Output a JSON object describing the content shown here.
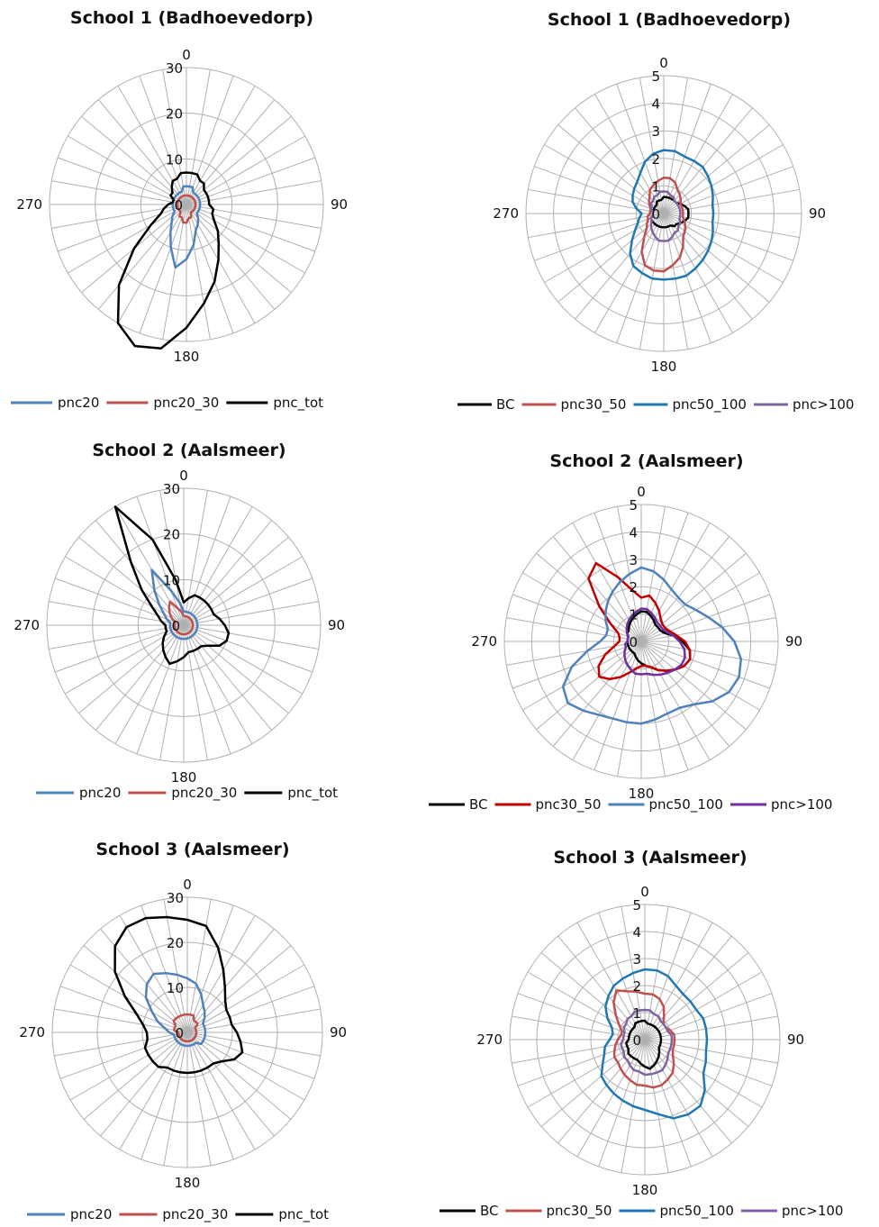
{
  "chart_data": [
    {
      "type": "radar",
      "title": "School 1 (Badhoevedorp)",
      "axis_labels": [
        "0",
        "90",
        "180",
        "270"
      ],
      "rlim": [
        0,
        30
      ],
      "rticks": [
        "0",
        "10",
        "20",
        "30"
      ],
      "spokes": 36,
      "grid": true,
      "legend_position": "bottom",
      "series": [
        {
          "name": "pnc20",
          "color": "#4f81bd",
          "values": [
            4,
            4,
            4,
            3,
            3,
            3,
            3,
            3,
            3,
            3,
            3,
            3,
            3,
            3,
            4,
            5,
            6,
            9,
            12,
            14,
            10,
            7,
            5,
            4,
            3,
            3,
            3,
            3,
            3,
            3,
            3,
            3,
            3,
            3,
            3,
            4
          ]
        },
        {
          "name": "pnc20_30",
          "color": "#c0504d",
          "values": [
            2,
            2,
            2,
            2,
            2,
            2,
            2,
            2,
            2,
            2,
            2,
            2,
            2,
            2,
            2,
            2,
            3,
            3,
            4,
            4,
            3,
            3,
            2,
            2,
            2,
            2,
            2,
            2,
            2,
            2,
            2,
            2,
            2,
            2,
            2,
            2
          ]
        },
        {
          "name": "pnc_tot",
          "color": "#000000",
          "values": [
            7,
            7,
            7,
            6,
            6,
            5,
            5,
            5,
            5,
            5,
            6,
            6,
            7,
            9,
            11,
            14,
            18,
            22,
            27,
            32,
            33,
            30,
            23,
            15,
            9,
            6,
            5,
            4,
            3,
            3,
            4,
            4,
            5,
            6,
            6,
            7
          ]
        }
      ]
    },
    {
      "type": "radar",
      "title": "School 1 (Badhoevedorp)",
      "axis_labels": [
        "0",
        "90",
        "180",
        "270"
      ],
      "rlim": [
        0,
        5
      ],
      "rticks": [
        "0",
        "1",
        "2",
        "3",
        "4",
        "5"
      ],
      "spokes": 36,
      "grid": true,
      "legend_position": "bottom",
      "series": [
        {
          "name": "BC",
          "color": "#000000",
          "values": [
            0.6,
            0.6,
            0.6,
            0.6,
            0.6,
            0.6,
            0.7,
            0.8,
            0.9,
            0.9,
            0.9,
            0.8,
            0.7,
            0.6,
            0.6,
            0.5,
            0.5,
            0.5,
            0.5,
            0.5,
            0.5,
            0.5,
            0.5,
            0.5,
            0.5,
            0.5,
            0.4,
            0.4,
            0.4,
            0.4,
            0.4,
            0.4,
            0.4,
            0.5,
            0.5,
            0.5
          ]
        },
        {
          "name": "pnc30_50",
          "color": "#c0504d",
          "values": [
            1.3,
            1.3,
            1.2,
            1.0,
            0.9,
            0.8,
            0.7,
            0.7,
            0.7,
            0.7,
            0.7,
            0.8,
            0.9,
            1.0,
            1.1,
            1.4,
            1.7,
            1.9,
            2.1,
            2.1,
            2.0,
            1.6,
            1.1,
            0.8,
            0.7,
            0.6,
            0.6,
            0.5,
            0.5,
            0.5,
            0.6,
            0.7,
            0.8,
            1.0,
            1.1,
            1.2
          ]
        },
        {
          "name": "pnc50_100",
          "color": "#1f78b4",
          "values": [
            2.3,
            2.3,
            2.2,
            2.2,
            2.2,
            2.1,
            2.0,
            1.9,
            1.8,
            1.8,
            1.8,
            1.9,
            2.0,
            2.1,
            2.2,
            2.3,
            2.4,
            2.4,
            2.4,
            2.4,
            2.3,
            2.2,
            1.9,
            1.5,
            1.2,
            1.0,
            0.9,
            0.8,
            1.0,
            1.2,
            1.3,
            1.4,
            1.5,
            1.7,
            2.0,
            2.2
          ]
        },
        {
          "name": "pnc>100",
          "color": "#8064a2",
          "values": [
            0.8,
            0.8,
            0.7,
            0.7,
            0.6,
            0.6,
            0.6,
            0.6,
            0.6,
            0.6,
            0.6,
            0.6,
            0.7,
            0.7,
            0.8,
            0.8,
            0.9,
            1.0,
            1.0,
            1.0,
            0.9,
            0.8,
            0.7,
            0.6,
            0.5,
            0.5,
            0.4,
            0.4,
            0.4,
            0.5,
            0.5,
            0.6,
            0.6,
            0.7,
            0.7,
            0.8
          ]
        }
      ]
    },
    {
      "type": "radar",
      "title": "School 2 (Aalsmeer)",
      "axis_labels": [
        "0",
        "90",
        "180",
        "270"
      ],
      "rlim": [
        0,
        30
      ],
      "rticks": [
        "0",
        "10",
        "20",
        "30"
      ],
      "spokes": 36,
      "grid": true,
      "legend_position": "bottom",
      "series": [
        {
          "name": "pnc20",
          "color": "#4f81bd",
          "values": [
            3,
            3,
            3,
            3,
            3,
            3,
            3,
            3,
            3,
            3,
            3,
            3,
            3,
            3,
            3,
            3,
            3,
            3,
            3,
            3,
            3,
            3,
            3,
            3,
            3,
            3,
            3,
            3,
            3,
            4,
            5,
            7,
            10,
            14,
            8,
            5
          ]
        },
        {
          "name": "pnc20_30",
          "color": "#c0504d",
          "values": [
            2,
            2,
            2,
            2,
            2,
            2,
            2,
            2,
            2,
            2,
            2,
            2,
            2,
            2,
            2,
            2,
            2,
            2,
            2,
            2,
            2,
            2,
            2,
            2,
            2,
            2,
            2,
            2,
            2,
            2,
            3,
            4,
            5,
            6,
            4,
            3
          ]
        },
        {
          "name": "pnc_tot",
          "color": "#000000",
          "values": [
            5,
            6,
            7,
            7,
            7,
            7,
            7,
            7,
            8,
            9,
            10,
            10,
            9,
            7,
            6,
            6,
            6,
            6,
            7,
            8,
            9,
            8,
            7,
            6,
            5,
            4,
            4,
            4,
            5,
            6,
            8,
            12,
            18,
            30,
            20,
            10
          ]
        }
      ]
    },
    {
      "type": "radar",
      "title": "School 2 (Aalsmeer)",
      "axis_labels": [
        "0",
        "90",
        "180",
        "270"
      ],
      "rlim": [
        0,
        5
      ],
      "rticks": [
        "0",
        "1",
        "2",
        "3",
        "4",
        "5"
      ],
      "spokes": 36,
      "grid": true,
      "legend_position": "bottom",
      "series": [
        {
          "name": "BC",
          "color": "#000000",
          "values": [
            1.1,
            1.1,
            1.0,
            0.9,
            0.8,
            0.8,
            0.8,
            0.9,
            1.2,
            1.5,
            1.8,
            1.9,
            1.8,
            1.6,
            1.4,
            1.2,
            1.0,
            0.9,
            0.8,
            0.7,
            0.6,
            0.5,
            0.5,
            0.5,
            0.5,
            0.5,
            0.5,
            0.5,
            0.5,
            0.5,
            0.6,
            0.6,
            0.7,
            0.8,
            0.9,
            1.0
          ]
        },
        {
          "name": "pnc30_50",
          "color": "#c00000",
          "values": [
            1.6,
            1.7,
            1.5,
            1.3,
            1.1,
            1.0,
            1.0,
            1.1,
            1.3,
            1.6,
            1.8,
            1.9,
            1.8,
            1.6,
            1.4,
            1.2,
            1.0,
            0.9,
            0.9,
            1.0,
            1.2,
            1.5,
            1.8,
            2.0,
            1.8,
            1.4,
            1.0,
            0.8,
            0.8,
            0.9,
            1.3,
            2.0,
            3.0,
            3.3,
            2.5,
            1.9
          ]
        },
        {
          "name": "pnc50_100",
          "color": "#4f81bd",
          "values": [
            2.7,
            2.6,
            2.4,
            2.2,
            2.1,
            2.1,
            2.3,
            2.6,
            3.0,
            3.4,
            3.7,
            3.8,
            3.7,
            3.4,
            3.0,
            2.8,
            2.8,
            2.9,
            3.0,
            3.0,
            3.0,
            3.1,
            3.3,
            3.5,
            3.3,
            2.7,
            2.0,
            1.5,
            1.3,
            1.3,
            1.5,
            1.7,
            1.9,
            2.1,
            2.3,
            2.5
          ]
        },
        {
          "name": "pnc>100",
          "color": "#7030a0",
          "values": [
            1.2,
            1.2,
            1.1,
            1.0,
            0.9,
            0.9,
            0.9,
            1.0,
            1.2,
            1.4,
            1.6,
            1.7,
            1.7,
            1.6,
            1.5,
            1.4,
            1.3,
            1.2,
            1.2,
            1.2,
            1.1,
            1.0,
            0.9,
            0.8,
            0.7,
            0.6,
            0.6,
            0.5,
            0.5,
            0.5,
            0.6,
            0.7,
            0.8,
            0.9,
            1.0,
            1.1
          ]
        }
      ]
    },
    {
      "type": "radar",
      "title": "School 3 (Aalsmeer)",
      "axis_labels": [
        "0",
        "90",
        "180",
        "270"
      ],
      "rlim": [
        0,
        30
      ],
      "rticks": [
        "0",
        "10",
        "20",
        "30"
      ],
      "spokes": 36,
      "grid": true,
      "legend_position": "bottom",
      "series": [
        {
          "name": "pnc20",
          "color": "#4f81bd",
          "values": [
            12,
            11,
            9,
            7,
            6,
            5,
            4,
            4,
            4,
            4,
            4,
            4,
            4,
            4,
            3,
            3,
            3,
            3,
            3,
            3,
            3,
            3,
            3,
            3,
            3,
            3,
            3,
            4,
            5,
            7,
            9,
            12,
            14,
            15,
            14,
            13
          ]
        },
        {
          "name": "pnc20_30",
          "color": "#c0504d",
          "values": [
            4,
            4,
            4,
            3,
            3,
            3,
            2,
            2,
            2,
            2,
            2,
            2,
            2,
            2,
            2,
            2,
            2,
            2,
            2,
            2,
            2,
            2,
            2,
            2,
            2,
            2,
            2,
            2,
            3,
            3,
            3,
            4,
            4,
            4,
            4,
            4
          ]
        },
        {
          "name": "pnc_tot",
          "color": "#000000",
          "values": [
            25,
            24,
            20,
            16,
            13,
            11,
            10,
            10,
            10,
            11,
            12,
            13,
            12,
            10,
            9,
            9,
            9,
            9,
            9,
            9,
            9,
            9,
            10,
            10,
            10,
            10,
            9,
            9,
            10,
            12,
            16,
            21,
            25,
            27,
            27,
            26
          ]
        }
      ]
    },
    {
      "type": "radar",
      "title": "School 3 (Aalsmeer)",
      "axis_labels": [
        "0",
        "90",
        "180",
        "270"
      ],
      "rlim": [
        0,
        5
      ],
      "rticks": [
        "0",
        "1",
        "2",
        "3",
        "4",
        "5"
      ],
      "spokes": 36,
      "grid": true,
      "legend_position": "bottom",
      "series": [
        {
          "name": "BC",
          "color": "#000000",
          "values": [
            0.7,
            0.6,
            0.6,
            0.6,
            0.6,
            0.6,
            0.6,
            0.6,
            0.6,
            0.6,
            0.6,
            0.6,
            0.6,
            0.7,
            0.8,
            0.9,
            1.0,
            1.1,
            1.0,
            0.9,
            0.8,
            0.8,
            0.8,
            0.8,
            0.7,
            0.7,
            0.7,
            0.6,
            0.6,
            0.6,
            0.6,
            0.6,
            0.6,
            0.7,
            0.7,
            0.7
          ]
        },
        {
          "name": "pnc30_50",
          "color": "#c0504d",
          "values": [
            1.7,
            1.7,
            1.6,
            1.4,
            1.1,
            0.9,
            0.9,
            1.0,
            1.1,
            1.1,
            1.1,
            1.1,
            1.2,
            1.4,
            1.6,
            1.7,
            1.8,
            1.8,
            1.7,
            1.7,
            1.6,
            1.5,
            1.4,
            1.3,
            1.3,
            1.2,
            1.1,
            1.0,
            0.9,
            0.9,
            1.1,
            1.4,
            1.8,
            2.1,
            1.9,
            1.8
          ]
        },
        {
          "name": "pnc50_100",
          "color": "#1f78b4",
          "values": [
            2.6,
            2.6,
            2.5,
            2.3,
            2.2,
            2.2,
            2.2,
            2.3,
            2.3,
            2.3,
            2.3,
            2.4,
            2.5,
            2.9,
            3.2,
            3.2,
            3.1,
            2.8,
            2.6,
            2.5,
            2.4,
            2.3,
            2.2,
            2.1,
            1.8,
            1.6,
            1.5,
            1.3,
            1.2,
            1.3,
            1.6,
            1.9,
            2.1,
            2.3,
            2.4,
            2.5
          ]
        },
        {
          "name": "pnc>100",
          "color": "#8064a2",
          "values": [
            1.1,
            1.1,
            1.0,
            1.0,
            0.9,
            0.9,
            0.9,
            0.9,
            1.0,
            1.0,
            1.0,
            1.0,
            1.0,
            1.1,
            1.2,
            1.3,
            1.3,
            1.3,
            1.3,
            1.2,
            1.2,
            1.1,
            1.0,
            1.0,
            0.9,
            0.9,
            0.9,
            0.8,
            0.8,
            0.8,
            0.9,
            0.9,
            1.0,
            1.0,
            1.1,
            1.1
          ]
        }
      ]
    }
  ]
}
